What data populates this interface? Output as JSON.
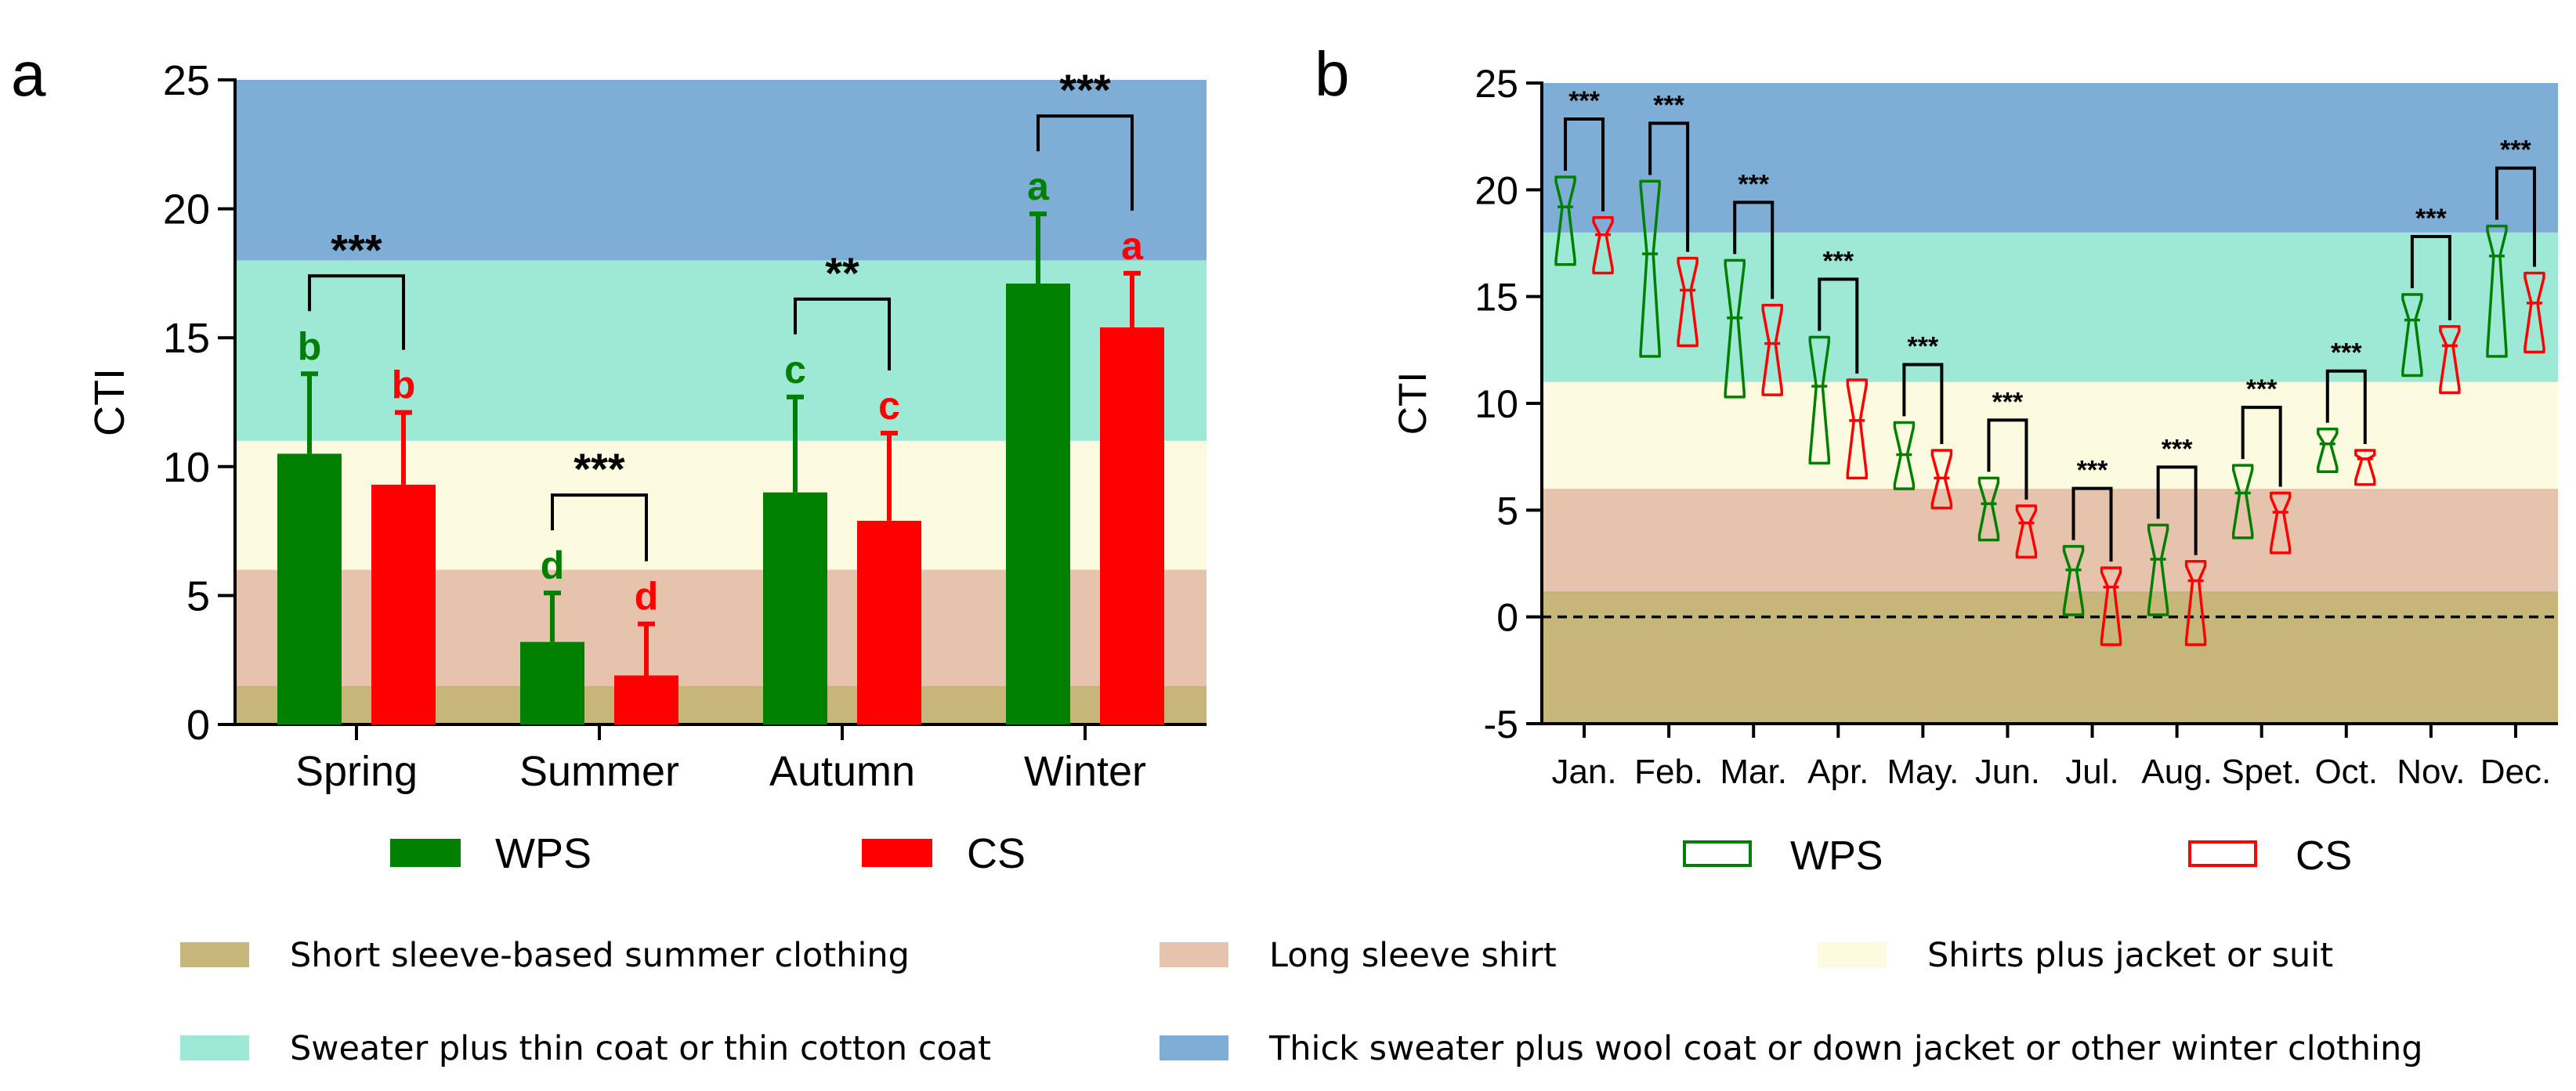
{
  "panels": {
    "a": {
      "label": "a"
    },
    "b": {
      "label": "b"
    }
  },
  "colors": {
    "wps": "#008000",
    "cs": "#ff0000",
    "band_summer": "#c6b67a",
    "band_long_sleeve": "#e5c3ad",
    "band_shirt_jacket": "#fcfbdf",
    "band_sweater_thin_coat": "#9ee9d6",
    "band_thick_winter": "#7eaed6"
  },
  "band_legend": [
    {
      "key": "summer",
      "label": "Short sleeve-based summer clothing",
      "color": "#c6b67a"
    },
    {
      "key": "long_sleeve",
      "label": "Long sleeve shirt",
      "color": "#e5c3ad"
    },
    {
      "key": "shirt_jacket",
      "label": "Shirts plus jacket or suit",
      "color": "#fcfbdf"
    },
    {
      "key": "sweater_thin_coat",
      "label": "Sweater plus thin coat or thin cotton coat",
      "color": "#9ee9d6"
    },
    {
      "key": "thick_winter",
      "label": "Thick sweater plus wool coat or down jacket or other winter clothing",
      "color": "#7eaed6"
    }
  ],
  "chart_data": [
    {
      "id": "a",
      "type": "bar",
      "title": "",
      "xlabel": "",
      "ylabel": "CTI",
      "ylim": [
        0,
        25
      ],
      "yticks": [
        0,
        5,
        10,
        15,
        20,
        25
      ],
      "categories": [
        "Spring",
        "Summer",
        "Autumn",
        "Winter"
      ],
      "series": [
        {
          "name": "WPS",
          "color": "#008000",
          "values": [
            10.5,
            3.2,
            9.0,
            17.1
          ],
          "errors": [
            3.1,
            1.9,
            3.7,
            2.7
          ],
          "letters": [
            "b",
            "d",
            "c",
            "a"
          ]
        },
        {
          "name": "CS",
          "color": "#ff0000",
          "values": [
            9.3,
            1.9,
            7.9,
            15.4
          ],
          "errors": [
            2.8,
            2.0,
            3.4,
            2.1
          ],
          "letters": [
            "b",
            "d",
            "c",
            "a"
          ]
        }
      ],
      "significance": [
        "***",
        "***",
        "**",
        "***"
      ],
      "bands": [
        {
          "key": "summer",
          "from": 0,
          "to": 1.5
        },
        {
          "key": "long_sleeve",
          "from": 1.5,
          "to": 6
        },
        {
          "key": "shirt_jacket",
          "from": 6,
          "to": 11
        },
        {
          "key": "sweater_thin_coat",
          "from": 11,
          "to": 18
        },
        {
          "key": "thick_winter",
          "from": 18,
          "to": 25
        }
      ],
      "legend": [
        "WPS",
        "CS"
      ]
    },
    {
      "id": "b",
      "type": "violin",
      "title": "",
      "xlabel": "",
      "ylabel": "CTI",
      "ylim": [
        -5,
        25
      ],
      "yticks": [
        -5,
        0,
        5,
        10,
        15,
        20,
        25
      ],
      "reference_line": 0,
      "categories": [
        "Jan.",
        "Feb.",
        "Mar.",
        "Apr.",
        "May.",
        "Jun.",
        "Jul.",
        "Aug.",
        "Spet.",
        "Oct.",
        "Nov.",
        "Dec."
      ],
      "series": [
        {
          "name": "WPS",
          "color": "#008000",
          "min": [
            16.5,
            12.2,
            10.3,
            7.2,
            6.0,
            3.6,
            0.1,
            0.1,
            3.7,
            6.8,
            11.3,
            12.2
          ],
          "max": [
            20.6,
            20.4,
            16.7,
            13.1,
            9.1,
            6.5,
            3.3,
            4.3,
            7.1,
            8.8,
            15.1,
            18.3
          ],
          "median": [
            19.2,
            17.0,
            14.0,
            10.8,
            7.6,
            5.3,
            2.2,
            2.7,
            5.8,
            8.1,
            13.9,
            16.9
          ]
        },
        {
          "name": "CS",
          "color": "#ff0000",
          "min": [
            16.1,
            12.7,
            10.4,
            6.5,
            5.1,
            2.8,
            -1.3,
            -1.3,
            3.0,
            6.2,
            10.5,
            12.4
          ],
          "max": [
            18.7,
            16.8,
            14.6,
            11.1,
            7.8,
            5.2,
            2.3,
            2.6,
            5.8,
            7.8,
            13.6,
            16.1
          ],
          "median": [
            17.9,
            15.3,
            12.8,
            9.2,
            6.5,
            4.4,
            1.4,
            1.7,
            4.9,
            7.4,
            12.7,
            14.7
          ]
        }
      ],
      "significance": [
        "***",
        "***",
        "***",
        "***",
        "***",
        "***",
        "***",
        "***",
        "***",
        "***",
        "***",
        "***"
      ],
      "bands": [
        {
          "key": "summer",
          "from": -5,
          "to": 1.2
        },
        {
          "key": "long_sleeve",
          "from": 1.2,
          "to": 6
        },
        {
          "key": "shirt_jacket",
          "from": 6,
          "to": 11
        },
        {
          "key": "sweater_thin_coat",
          "from": 11,
          "to": 18
        },
        {
          "key": "thick_winter",
          "from": 18,
          "to": 25
        }
      ],
      "legend": [
        "WPS",
        "CS"
      ]
    }
  ]
}
